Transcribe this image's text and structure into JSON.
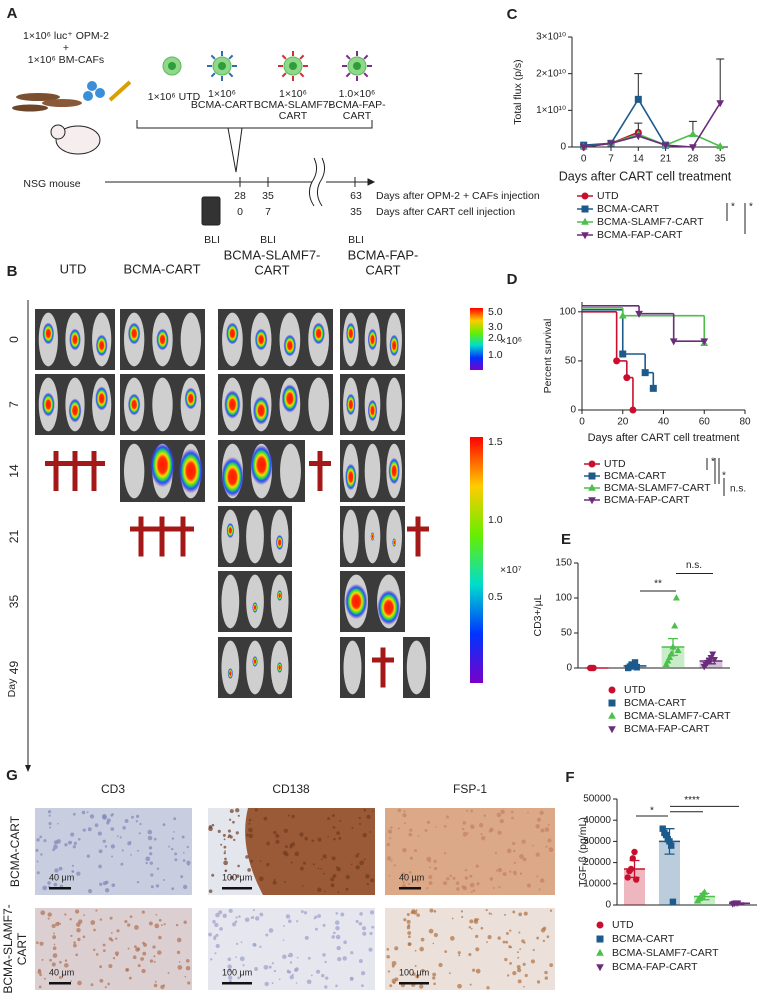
{
  "panel_a": {
    "label": "A",
    "inoculum": [
      "1×10⁶ luc⁺ OPM-2",
      "+",
      "1×10⁶ BM-CAFs"
    ],
    "mouse": "NSG mouse",
    "treatments": [
      [
        "1×10⁶ UTD"
      ],
      [
        "1×10⁶",
        "BCMA-CART"
      ],
      [
        "1×10⁶",
        "BCMA-SLAMF7-",
        "CART"
      ],
      [
        "1.0×10⁶",
        "BCMA-FAP-",
        "CART"
      ]
    ],
    "injection_days": [
      "28",
      "35",
      "63"
    ],
    "injection_days_label": "Days after OPM-2 + CAFs injection",
    "cart_days": [
      "0",
      "7",
      "35"
    ],
    "cart_days_label": "Days after CART cell injection",
    "imaging": [
      "BLI",
      "BLI",
      "BLI"
    ]
  },
  "panel_b": {
    "label": "B",
    "columns": [
      [
        "UTD"
      ],
      [
        "BCMA-CART"
      ],
      [
        "BCMA-SLAMF7-",
        "CART"
      ],
      [
        "BCMA-FAP-",
        "CART"
      ]
    ],
    "days": [
      "0",
      "7",
      "14",
      "21",
      "35",
      "49"
    ],
    "day_axis": "Day",
    "scale_1": [
      "5.0",
      "3.0",
      "2.0",
      "1.0"
    ],
    "scale_1_unit": "×10⁶",
    "scale_2": [
      "1.5",
      "1.0",
      "0.5"
    ],
    "scale_2_unit": "×10⁷"
  },
  "panel_g": {
    "label": "G",
    "columns": [
      "CD3",
      "CD138",
      "FSP-1"
    ],
    "rows": [
      [
        "BCMA-CART"
      ],
      [
        "BCMA-SLAMF7-",
        "CART"
      ]
    ],
    "scale_bars": [
      [
        "40 μm",
        "100 μm",
        "40 μm"
      ],
      [
        "40 μm",
        "100 μm",
        "100 μm"
      ]
    ]
  },
  "chart_data": [
    {
      "label": "C",
      "type": "line",
      "ylabel": "Total flux (p/s)",
      "xlabel": "Days after CART cell treatment",
      "x": [
        0,
        7,
        14,
        21,
        28,
        35
      ],
      "xlim": [
        -3,
        37
      ],
      "xticks": [
        0,
        7,
        14,
        21,
        28,
        35
      ],
      "ylim": [
        0,
        30000000000
      ],
      "yticks": [
        0,
        {
          "value": 10000000000,
          "label": "1×10¹⁰"
        },
        {
          "value": 20000000000,
          "label": "2×10¹⁰"
        },
        {
          "value": 30000000000,
          "label": "3×10¹⁰"
        }
      ],
      "series": [
        {
          "name": "UTD",
          "color": "#c8102e",
          "marker": "circle",
          "values": [
            0,
            1000000000,
            4000000000,
            null,
            null,
            null
          ]
        },
        {
          "name": "BCMA-CART",
          "color": "#1d5a8c",
          "marker": "square",
          "values": [
            500000000,
            1000000000,
            13000000000,
            500000000,
            null,
            null
          ],
          "errors": [
            null,
            null,
            7000000000,
            null,
            null,
            null
          ]
        },
        {
          "name": "BCMA-SLAMF7-CART",
          "color": "#4cbf4c",
          "marker": "triangle-up",
          "values": [
            0,
            1000000000,
            3500000000,
            500000000,
            3500000000,
            200000000
          ],
          "errors": [
            null,
            null,
            3000000000,
            null,
            3500000000,
            null
          ]
        },
        {
          "name": "BCMA-FAP-CART",
          "color": "#6b2d7b",
          "marker": "triangle-down",
          "values": [
            0,
            1000000000,
            3000000000,
            500000000,
            0,
            12000000000
          ],
          "errors": [
            null,
            null,
            null,
            null,
            null,
            12000000000
          ]
        }
      ],
      "significance": [
        "*",
        "*"
      ]
    },
    {
      "label": "D",
      "type": "step",
      "ylabel": "Percent survival",
      "xlabel": "Days after CART cell treatment",
      "xlim": [
        0,
        80
      ],
      "xticks": [
        0,
        20,
        40,
        60,
        80
      ],
      "ylim": [
        0,
        110
      ],
      "yticks": [
        0,
        50,
        100
      ],
      "series": [
        {
          "name": "UTD",
          "color": "#c8102e",
          "marker": "circle",
          "x": [
            0,
            17,
            22,
            25
          ],
          "values": [
            100,
            50,
            33,
            0
          ]
        },
        {
          "name": "BCMA-CART",
          "color": "#1d5a8c",
          "marker": "square",
          "x": [
            0,
            20,
            31,
            35
          ],
          "values": [
            100,
            55,
            36,
            20
          ]
        },
        {
          "name": "BCMA-SLAMF7-CART",
          "color": "#4cbf4c",
          "marker": "triangle-up",
          "x": [
            0,
            20,
            60
          ],
          "values": [
            100,
            92,
            64
          ]
        },
        {
          "name": "BCMA-FAP-CART",
          "color": "#6b2d7b",
          "marker": "triangle-down",
          "x": [
            0,
            28,
            45,
            60
          ],
          "values": [
            100,
            92,
            64,
            64
          ]
        }
      ],
      "significance": [
        "*",
        "*",
        "n.s."
      ]
    },
    {
      "label": "E",
      "type": "barscatter",
      "ylabel": "CD3+/μL",
      "ylim": [
        0,
        150
      ],
      "yticks": [
        0,
        50,
        100,
        150
      ],
      "series": [
        {
          "name": "UTD",
          "color": "#c8102e",
          "marker": "circle",
          "mean": 0,
          "points": [
            0,
            0,
            0
          ]
        },
        {
          "name": "BCMA-CART",
          "color": "#1d5a8c",
          "marker": "square",
          "mean": 3,
          "error": 2,
          "points": [
            0,
            2,
            5,
            3,
            8,
            1
          ]
        },
        {
          "name": "BCMA-SLAMF7-CART",
          "color": "#4cbf4c",
          "marker": "triangle-up",
          "mean": 30,
          "error": 12,
          "points": [
            5,
            10,
            15,
            20,
            30,
            60,
            100,
            25
          ]
        },
        {
          "name": "BCMA-FAP-CART",
          "color": "#6b2d7b",
          "marker": "triangle-down",
          "mean": 10,
          "error": 4,
          "points": [
            2,
            5,
            8,
            10,
            15,
            20,
            12
          ]
        }
      ],
      "significance": [
        "**",
        "n.s."
      ]
    },
    {
      "label": "F",
      "type": "barscatter",
      "ylabel": "TGF-β (pg/mL)",
      "ylim": [
        0,
        50000
      ],
      "yticks": [
        0,
        10000,
        20000,
        30000,
        40000,
        50000
      ],
      "series": [
        {
          "name": "UTD",
          "color": "#c8102e",
          "marker": "circle",
          "mean": 17000,
          "error": 4000,
          "points": [
            13000,
            16000,
            17000,
            22000,
            25000,
            12000
          ]
        },
        {
          "name": "BCMA-CART",
          "color": "#1d5a8c",
          "marker": "square",
          "mean": 30000,
          "error": 6000,
          "points": [
            36000,
            34000,
            33000,
            31000,
            30000,
            28000,
            1500
          ]
        },
        {
          "name": "BCMA-SLAMF7-CART",
          "color": "#4cbf4c",
          "marker": "triangle-up",
          "mean": 4000,
          "error": 1500,
          "points": [
            2000,
            3000,
            4000,
            5000,
            6000
          ]
        },
        {
          "name": "BCMA-FAP-CART",
          "color": "#6b2d7b",
          "marker": "triangle-down",
          "mean": 800,
          "error": 200,
          "points": [
            500,
            800,
            1000,
            900
          ]
        }
      ],
      "significance": [
        "*",
        "****"
      ]
    }
  ]
}
